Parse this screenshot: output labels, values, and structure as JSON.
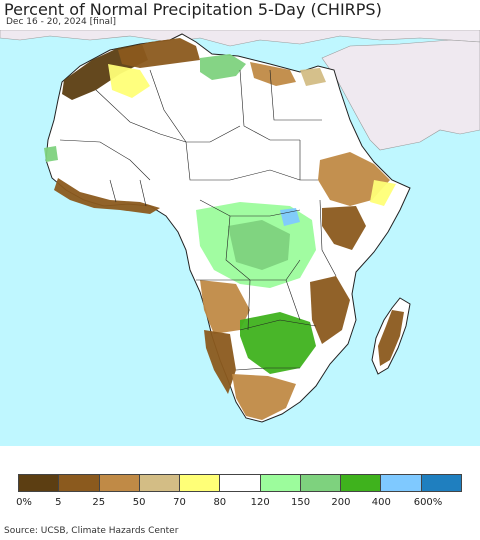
{
  "header": {
    "title": "Percent of Normal Precipitation 5-Day (CHIRPS)",
    "subtitle": "Dec 16 - 20, 2024 [final]"
  },
  "map": {
    "ocean_color": "#bff7ff",
    "land_color": "#ffffff",
    "other_land_color": "#efe9f0",
    "border_color": "#222222"
  },
  "legend": {
    "colors": [
      "#5c3e12",
      "#8b5a1e",
      "#c08a46",
      "#d3bd85",
      "#ffff77",
      "#ffffff",
      "#9cfc9c",
      "#7ed27e",
      "#3fb21d",
      "#7fc9ff",
      "#1f7fbf"
    ],
    "labels": [
      "0%",
      "5",
      "25",
      "50",
      "70",
      "80",
      "120",
      "150",
      "200",
      "400",
      "600%"
    ]
  },
  "footer": {
    "source": "Source: UCSB, Climate Hazards Center"
  }
}
